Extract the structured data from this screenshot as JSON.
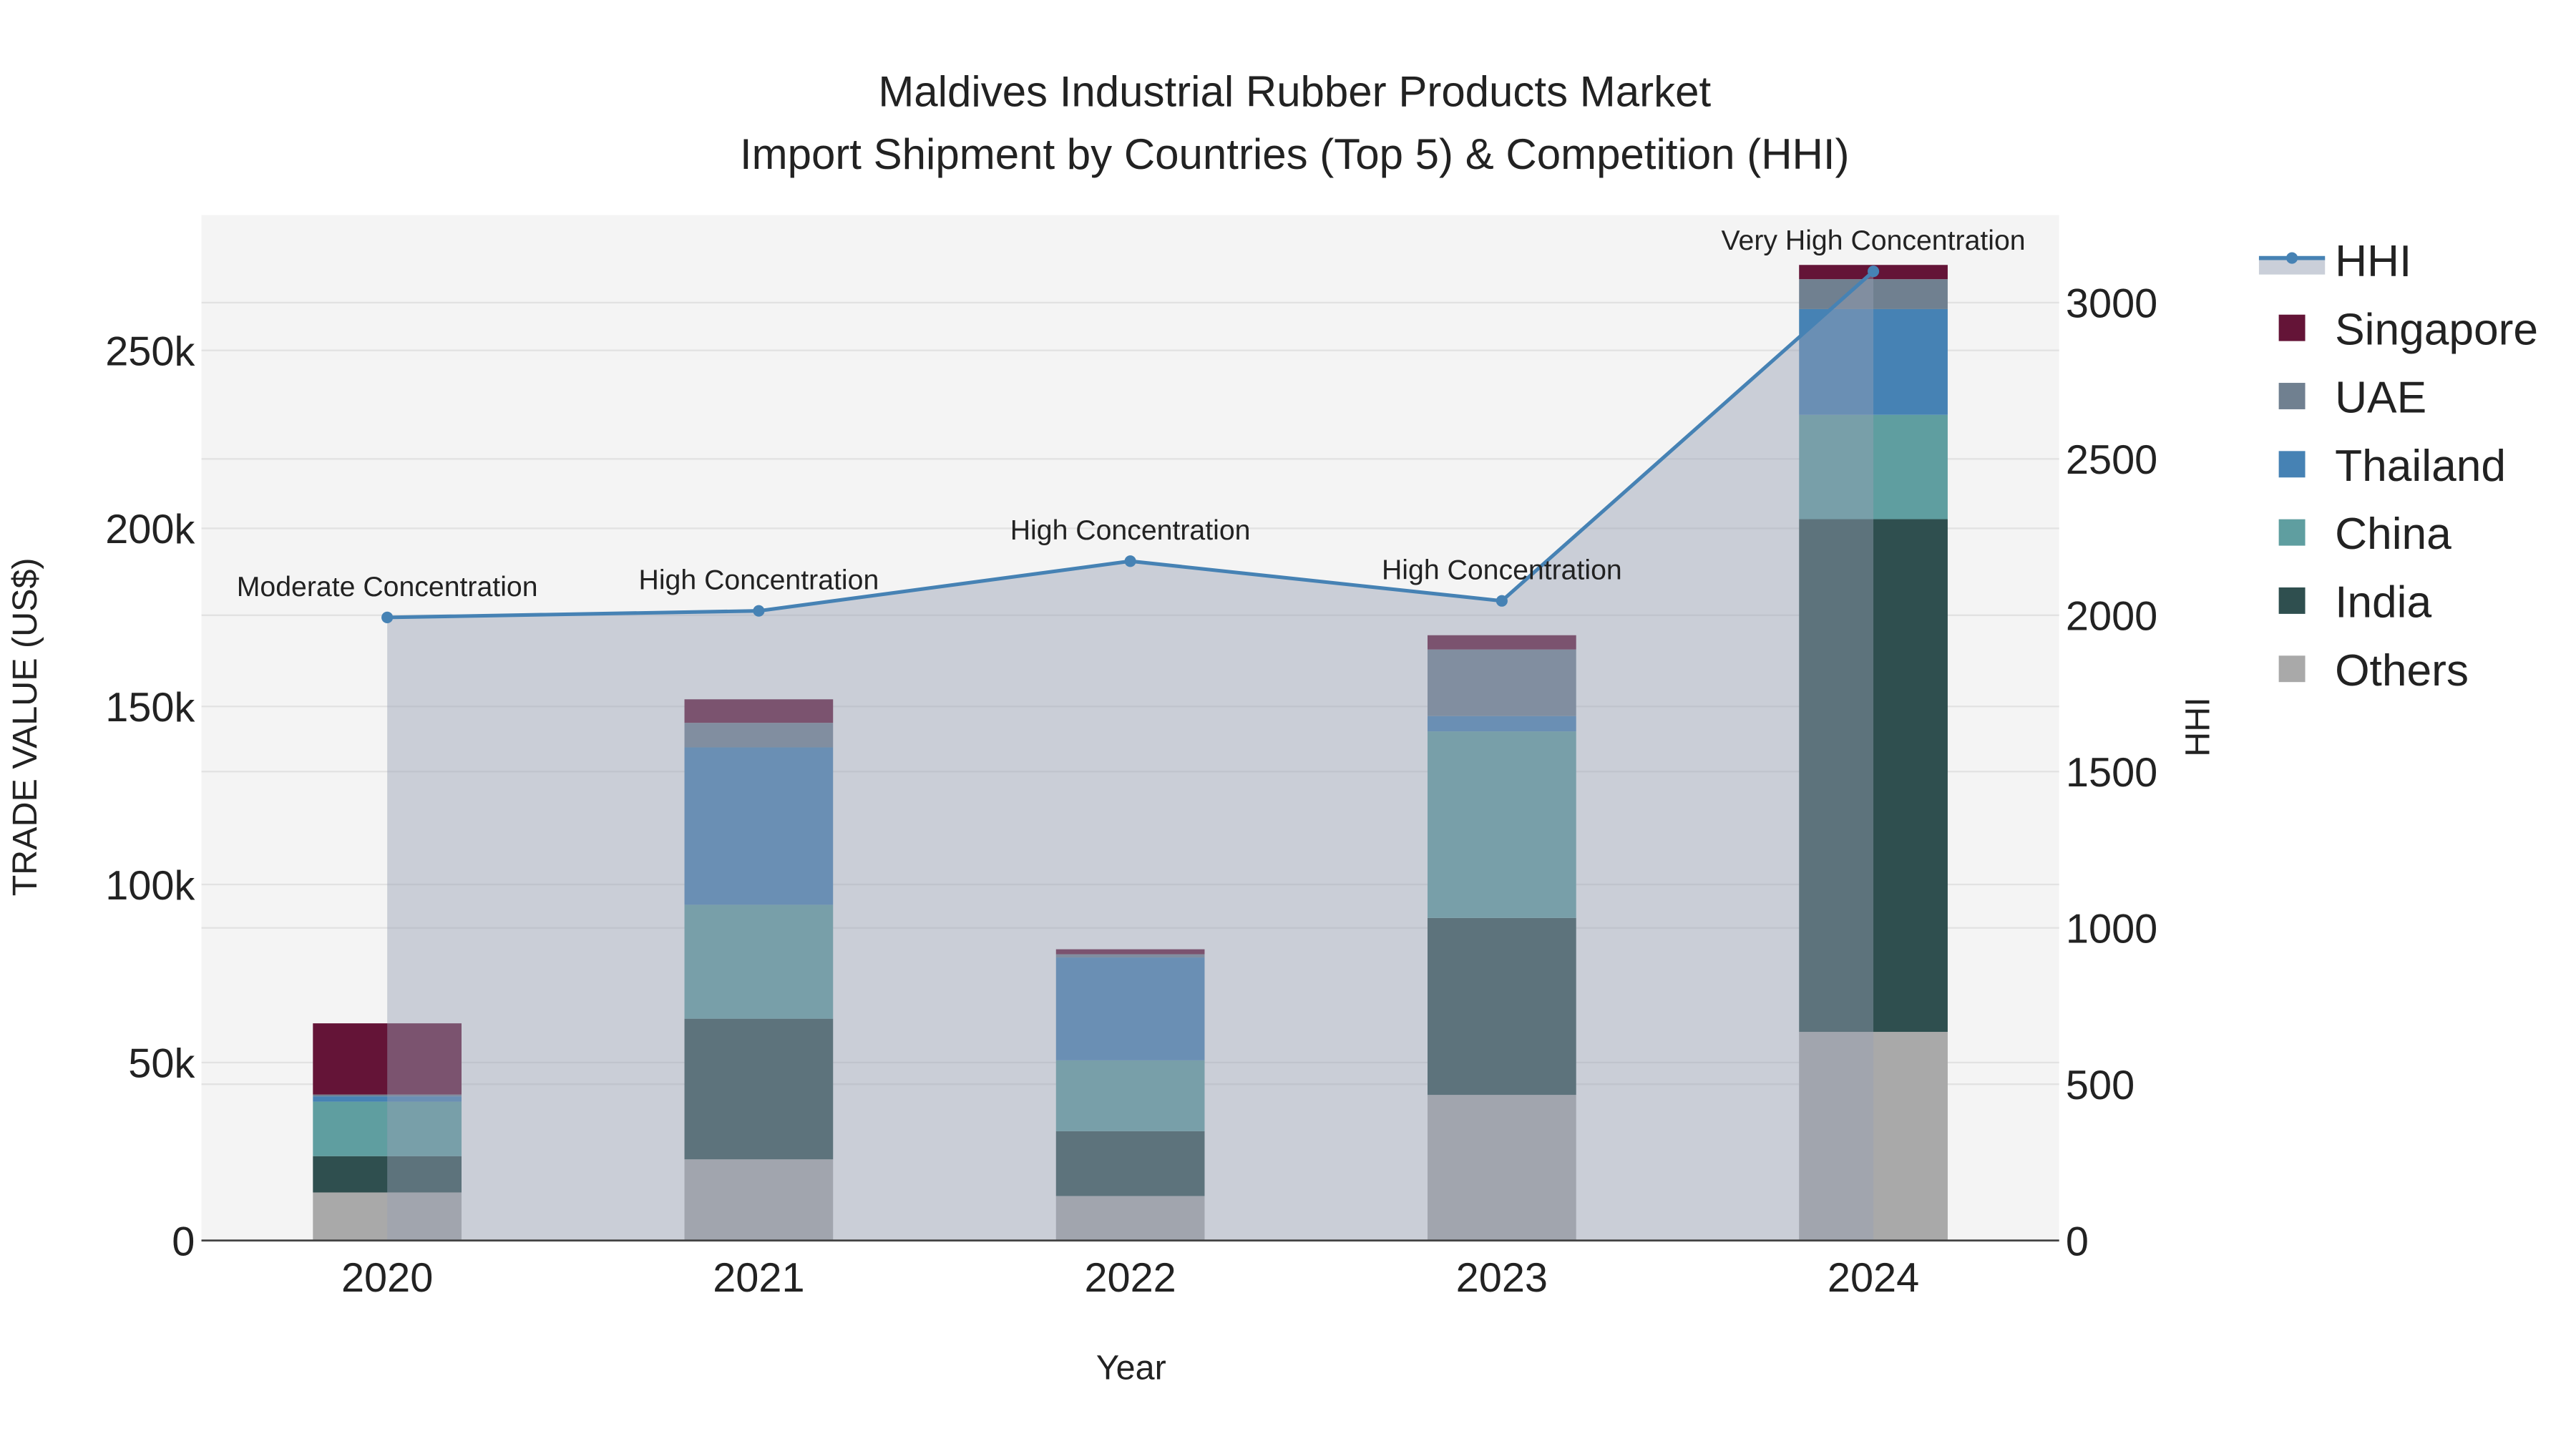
{
  "chart_data": {
    "type": "bar",
    "title": "Maldives Industrial Rubber Products Market",
    "subtitle": "Import Shipment by Countries (Top 5) & Competition (HHI)",
    "xlabel": "Year",
    "ylabel": "TRADE VALUE (US$)",
    "y2label": "HHI",
    "categories": [
      "2020",
      "2021",
      "2022",
      "2023",
      "2024"
    ],
    "ylim": [
      0,
      288000
    ],
    "y2lim": [
      0,
      3280
    ],
    "yticks": [
      0,
      50000,
      100000,
      150000,
      200000,
      250000
    ],
    "ytick_labels": [
      "0",
      "50k",
      "100k",
      "150k",
      "200k",
      "250k"
    ],
    "y2ticks": [
      0,
      500,
      1000,
      1500,
      2000,
      2500,
      3000
    ],
    "y2tick_labels": [
      "0",
      "500",
      "1000",
      "1500",
      "2000",
      "2500",
      "3000"
    ],
    "stacked": true,
    "series": [
      {
        "name": "Others",
        "color": "#a9a9a9",
        "values": [
          13500,
          22800,
          12500,
          40900,
          58600
        ]
      },
      {
        "name": "India",
        "color": "#2f4f4f",
        "values": [
          10200,
          39500,
          18200,
          49700,
          144000
        ]
      },
      {
        "name": "China",
        "color": "#5f9ea0",
        "values": [
          15300,
          32000,
          19900,
          52400,
          29300
        ]
      },
      {
        "name": "Thailand",
        "color": "#4682b4",
        "values": [
          1500,
          44200,
          28900,
          4300,
          29700
        ]
      },
      {
        "name": "UAE",
        "color": "#708090",
        "values": [
          500,
          6900,
          900,
          18700,
          8400
        ]
      },
      {
        "name": "Singapore",
        "color": "#641437",
        "values": [
          20000,
          6600,
          1400,
          4000,
          4000
        ]
      }
    ],
    "hhi": {
      "name": "HHI",
      "color": "#4682b4",
      "values": [
        1993,
        2014,
        2173,
        2046,
        3100
      ],
      "annotations": [
        "Moderate Concentration",
        "High Concentration",
        "High Concentration",
        "High Concentration",
        "Very High Concentration"
      ]
    },
    "legend_order": [
      "HHI",
      "Singapore",
      "UAE",
      "Thailand",
      "China",
      "India",
      "Others"
    ],
    "legend": "right",
    "grid": true
  }
}
